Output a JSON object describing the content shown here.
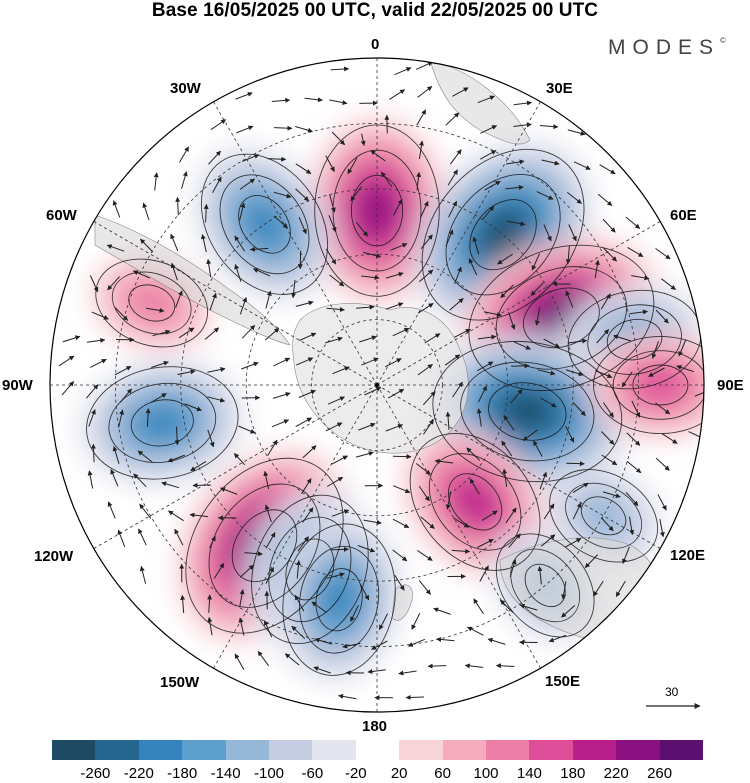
{
  "title": "Base 16/05/2025 00 UTC, valid 22/05/2025 00 UTC",
  "brand": "MODES",
  "brand_mark": "©",
  "longitude_labels": {
    "lon_0": "0",
    "lon_30e": "30E",
    "lon_60e": "60E",
    "lon_90e": "90E",
    "lon_120e": "120E",
    "lon_150e": "150E",
    "lon_180": "180",
    "lon_150w": "150W",
    "lon_120w": "120W",
    "lon_90w": "90W",
    "lon_60w": "60W",
    "lon_30w": "30W"
  },
  "reference_vector_label": "30",
  "colorbar": {
    "colors": [
      "#1f4a63",
      "#24668f",
      "#3684bd",
      "#5ea0cd",
      "#97b7d8",
      "#c6cde3",
      "#e5e5ef",
      "#ffffff",
      "#f7d4d9",
      "#f4acbc",
      "#ec7fa6",
      "#dd4d98",
      "#b81f8a",
      "#8c1180",
      "#5b0f6f"
    ],
    "tick_labels": [
      "-260",
      "-220",
      "-180",
      "-140",
      "-100",
      "-60",
      "-20",
      "20",
      "60",
      "100",
      "140",
      "180",
      "220",
      "260"
    ]
  },
  "anomaly_features": [
    {
      "lon": 0,
      "lat": -50,
      "value": 210
    },
    {
      "lon": 40,
      "lat": -45,
      "value": -250
    },
    {
      "lon": 70,
      "lat": -45,
      "value": 240
    },
    {
      "lon": 80,
      "lat": -30,
      "value": -150
    },
    {
      "lon": 100,
      "lat": -55,
      "value": -250
    },
    {
      "lon": 90,
      "lat": -25,
      "value": 130
    },
    {
      "lon": 140,
      "lat": -55,
      "value": 170
    },
    {
      "lon": 140,
      "lat": -30,
      "value": -90
    },
    {
      "lon": 120,
      "lat": -30,
      "value": -110
    },
    {
      "lon": -145,
      "lat": -45,
      "value": 250
    },
    {
      "lon": -160,
      "lat": -45,
      "value": -160
    },
    {
      "lon": -170,
      "lat": -40,
      "value": -170
    },
    {
      "lon": -100,
      "lat": -40,
      "value": -170
    },
    {
      "lon": -70,
      "lat": -35,
      "value": 110
    },
    {
      "lon": -35,
      "lat": -45,
      "value": -190
    }
  ]
}
